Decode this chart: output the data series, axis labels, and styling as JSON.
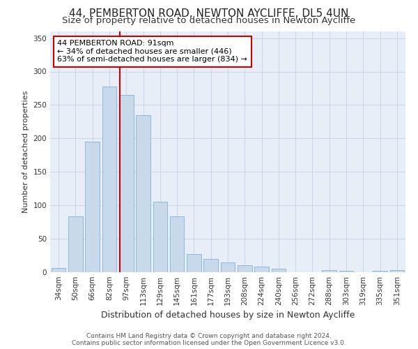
{
  "title1": "44, PEMBERTON ROAD, NEWTON AYCLIFFE, DL5 4UN",
  "title2": "Size of property relative to detached houses in Newton Aycliffe",
  "xlabel": "Distribution of detached houses by size in Newton Aycliffe",
  "ylabel": "Number of detached properties",
  "categories": [
    "34sqm",
    "50sqm",
    "66sqm",
    "82sqm",
    "97sqm",
    "113sqm",
    "129sqm",
    "145sqm",
    "161sqm",
    "177sqm",
    "193sqm",
    "208sqm",
    "224sqm",
    "240sqm",
    "256sqm",
    "272sqm",
    "288sqm",
    "303sqm",
    "319sqm",
    "335sqm",
    "351sqm"
  ],
  "values": [
    6,
    83,
    195,
    278,
    265,
    235,
    105,
    83,
    27,
    20,
    15,
    10,
    8,
    5,
    0,
    0,
    3,
    2,
    0,
    2,
    3
  ],
  "bar_color": "#c9d9ec",
  "bar_edge_color": "#8fb8d8",
  "vline_color": "#cc0000",
  "annotation_text": "44 PEMBERTON ROAD: 91sqm\n← 34% of detached houses are smaller (446)\n63% of semi-detached houses are larger (834) →",
  "annotation_box_color": "#ffffff",
  "annotation_box_edge_color": "#cc0000",
  "ylim": [
    0,
    360
  ],
  "yticks": [
    0,
    50,
    100,
    150,
    200,
    250,
    300,
    350
  ],
  "grid_color": "#c8d4e8",
  "background_color": "#e8eef8",
  "footer_text": "Contains HM Land Registry data © Crown copyright and database right 2024.\nContains public sector information licensed under the Open Government Licence v3.0.",
  "title1_fontsize": 11,
  "title2_fontsize": 9.5,
  "xlabel_fontsize": 9,
  "ylabel_fontsize": 8,
  "tick_fontsize": 7.5,
  "annotation_fontsize": 8,
  "footer_fontsize": 6.5
}
